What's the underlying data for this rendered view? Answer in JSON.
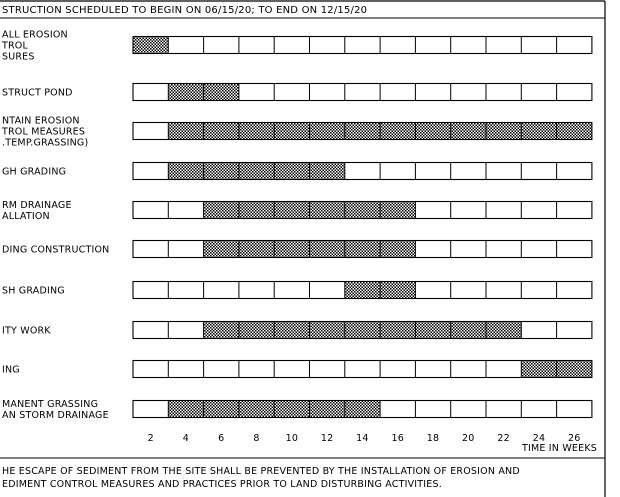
{
  "header": "STRUCTION SCHEDULED TO BEGIN ON 06/15/20; TO END ON 12/15/20",
  "weeks_total": 26,
  "tasks": [
    {
      "label": [
        "ALL EROSION",
        "TROL",
        "SURES"
      ],
      "start_week": 0,
      "end_week": 2
    },
    {
      "label": [
        "STRUCT POND"
      ],
      "start_week": 2,
      "end_week": 6
    },
    {
      "label": [
        "NTAIN EROSION",
        "TROL MEASURES",
        ".TEMP.GRASSING)"
      ],
      "start_week": 2,
      "end_week": 26
    },
    {
      "label": [
        "GH GRADING"
      ],
      "start_week": 2,
      "end_week": 12
    },
    {
      "label": [
        "RM DRAINAGE",
        "ALLATION"
      ],
      "start_week": 4,
      "end_week": 16
    },
    {
      "label": [
        "DING CONSTRUCTION"
      ],
      "start_week": 4,
      "end_week": 16
    },
    {
      "label": [
        "SH GRADING"
      ],
      "start_week": 12,
      "end_week": 16
    },
    {
      "label": [
        "ITY WORK"
      ],
      "start_week": 4,
      "end_week": 22
    },
    {
      "label": [
        "ING"
      ],
      "start_week": 22,
      "end_week": 26
    },
    {
      "label": [
        "MANENT GRASSING",
        "AN STORM DRAINAGE"
      ],
      "start_week": 2,
      "end_week": 14
    }
  ],
  "week_ticks": [
    "2",
    "4",
    "6",
    "8",
    "10",
    "12",
    "14",
    "16",
    "18",
    "20",
    "22",
    "24",
    "26"
  ],
  "axis_label": "TIME IN WEEKS",
  "footer": [
    "HE ESCAPE OF SEDIMENT FROM THE SITE SHALL BE PREVENTED BY THE INSTALLATION OF EROSION AND",
    "EDIMENT CONTROL MEASURES AND PRACTICES PRIOR TO LAND DISTURBING ACTIVITIES."
  ]
}
